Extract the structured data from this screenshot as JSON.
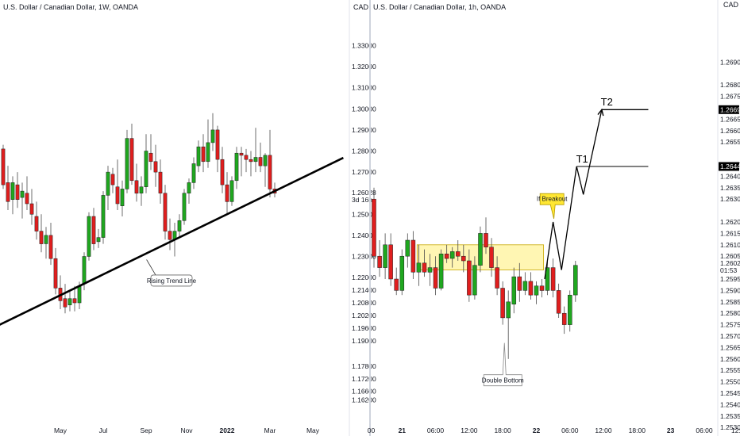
{
  "colors": {
    "up": "#1fa71f",
    "down": "#e01e1e",
    "wick": "#4a4a4a",
    "zone_fill": "#fff4a6",
    "zone_stroke": "#c8a800",
    "callout": "#ffe733",
    "divider": "#cfd3dc",
    "line": "#000000"
  },
  "chart_data": [
    {
      "type": "candlestick",
      "title": "U.S. Dollar / Canadian Dollar, 1W, OANDA",
      "currency_label": "CAD",
      "price_axis": {
        "range": [
          1.158,
          1.346
        ],
        "ticks": [
          "1.33000",
          "1.32000",
          "1.31000",
          "1.30000",
          "1.29000",
          "1.28000",
          "1.27000",
          "1.25000",
          "1.24000",
          "1.23000",
          "1.22000",
          "1.21400",
          "1.20800",
          "1.20200",
          "1.19600",
          "1.19000",
          "1.17800",
          "1.17200",
          "1.16600",
          "1.16200"
        ],
        "tick_values": [
          1.33,
          1.32,
          1.31,
          1.3,
          1.29,
          1.28,
          1.27,
          1.25,
          1.24,
          1.23,
          1.22,
          1.214,
          1.208,
          1.202,
          1.196,
          1.19,
          1.178,
          1.172,
          1.166,
          1.162
        ]
      },
      "last_price": {
        "value": "1.26028",
        "y": 1.2603,
        "countdown": "3d 16h"
      },
      "time_labels": [
        {
          "label": "lar",
          "i": -1.7,
          "bold": false
        },
        {
          "label": "May",
          "i": 12,
          "bold": false
        },
        {
          "label": "Jul",
          "i": 21,
          "bold": false
        },
        {
          "label": "Sep",
          "i": 30,
          "bold": false
        },
        {
          "label": "Nov",
          "i": 38.5,
          "bold": false
        },
        {
          "label": "2022",
          "i": 47,
          "bold": true
        },
        {
          "label": "Mar",
          "i": 56,
          "bold": false
        },
        {
          "label": "May",
          "i": 65,
          "bold": false
        }
      ],
      "candles": [
        [
          1.281,
          1.283,
          1.262,
          1.264
        ],
        [
          1.265,
          1.273,
          1.252,
          1.256
        ],
        [
          1.257,
          1.268,
          1.25,
          1.265
        ],
        [
          1.264,
          1.27,
          1.253,
          1.257
        ],
        [
          1.258,
          1.265,
          1.248,
          1.261
        ],
        [
          1.26,
          1.268,
          1.252,
          1.255
        ],
        [
          1.255,
          1.262,
          1.245,
          1.25
        ],
        [
          1.249,
          1.256,
          1.238,
          1.242
        ],
        [
          1.242,
          1.25,
          1.232,
          1.236
        ],
        [
          1.236,
          1.244,
          1.229,
          1.24
        ],
        [
          1.24,
          1.246,
          1.226,
          1.229
        ],
        [
          1.229,
          1.234,
          1.212,
          1.215
        ],
        [
          1.215,
          1.221,
          1.205,
          1.209
        ],
        [
          1.21,
          1.217,
          1.203,
          1.206
        ],
        [
          1.207,
          1.214,
          1.204,
          1.21
        ],
        [
          1.21,
          1.216,
          1.204,
          1.208
        ],
        [
          1.208,
          1.218,
          1.205,
          1.216
        ],
        [
          1.217,
          1.232,
          1.214,
          1.23
        ],
        [
          1.23,
          1.251,
          1.228,
          1.249
        ],
        [
          1.249,
          1.253,
          1.233,
          1.236
        ],
        [
          1.237,
          1.243,
          1.234,
          1.239
        ],
        [
          1.239,
          1.261,
          1.236,
          1.259
        ],
        [
          1.259,
          1.273,
          1.252,
          1.27
        ],
        [
          1.269,
          1.272,
          1.26,
          1.264
        ],
        [
          1.263,
          1.276,
          1.252,
          1.255
        ],
        [
          1.254,
          1.266,
          1.249,
          1.262
        ],
        [
          1.262,
          1.29,
          1.26,
          1.286
        ],
        [
          1.286,
          1.293,
          1.264,
          1.266
        ],
        [
          1.266,
          1.274,
          1.256,
          1.26
        ],
        [
          1.26,
          1.268,
          1.254,
          1.263
        ],
        [
          1.263,
          1.288,
          1.26,
          1.28
        ],
        [
          1.279,
          1.288,
          1.271,
          1.275
        ],
        [
          1.275,
          1.283,
          1.263,
          1.27
        ],
        [
          1.27,
          1.276,
          1.255,
          1.26
        ],
        [
          1.26,
          1.264,
          1.238,
          1.242
        ],
        [
          1.242,
          1.248,
          1.233,
          1.238
        ],
        [
          1.238,
          1.246,
          1.23,
          1.242
        ],
        [
          1.242,
          1.25,
          1.239,
          1.247
        ],
        [
          1.247,
          1.262,
          1.245,
          1.26
        ],
        [
          1.26,
          1.267,
          1.255,
          1.265
        ],
        [
          1.265,
          1.277,
          1.262,
          1.274
        ],
        [
          1.273,
          1.285,
          1.27,
          1.282
        ],
        [
          1.282,
          1.288,
          1.27,
          1.275
        ],
        [
          1.275,
          1.295,
          1.272,
          1.284
        ],
        [
          1.284,
          1.298,
          1.28,
          1.29
        ],
        [
          1.29,
          1.292,
          1.27,
          1.276
        ],
        [
          1.276,
          1.282,
          1.26,
          1.264
        ],
        [
          1.264,
          1.27,
          1.25,
          1.256
        ],
        [
          1.256,
          1.268,
          1.254,
          1.266
        ],
        [
          1.266,
          1.282,
          1.262,
          1.279
        ],
        [
          1.279,
          1.282,
          1.268,
          1.278
        ],
        [
          1.278,
          1.281,
          1.27,
          1.276
        ],
        [
          1.276,
          1.28,
          1.268,
          1.275
        ],
        [
          1.275,
          1.291,
          1.27,
          1.277
        ],
        [
          1.277,
          1.284,
          1.27,
          1.273
        ],
        [
          1.273,
          1.279,
          1.263,
          1.278
        ],
        [
          1.278,
          1.29,
          1.258,
          1.262
        ],
        [
          1.262,
          1.265,
          1.258,
          1.26
        ]
      ],
      "trend_line": {
        "from": [
          -4.5,
          1.1935
        ],
        "to": [
          71.4,
          1.2768
        ]
      },
      "annotation": {
        "label": "Rising Trend Line",
        "leader_from": [
          30.1,
          1.2285
        ],
        "leader_to": [
          32,
          1.2212
        ]
      }
    },
    {
      "type": "candlestick",
      "title": "U.S. Dollar / Canadian Dollar, 1h, OANDA",
      "currency_label": "CAD",
      "price_axis": {
        "range": [
          1.2528,
          1.2712
        ],
        "ticks": [
          "1.26900",
          "1.26800",
          "1.26750",
          "1.26650",
          "1.26600",
          "1.26550",
          "1.26450",
          "1.26400",
          "1.26350",
          "1.26300",
          "1.26200",
          "1.26150",
          "1.26100",
          "1.26050",
          "1.25950",
          "1.25900",
          "1.25850",
          "1.25800",
          "1.25750",
          "1.25700",
          "1.25650",
          "1.25600",
          "1.25550",
          "1.25500",
          "1.25450",
          "1.25400",
          "1.25350",
          "1.25300"
        ],
        "tick_values": [
          1.269,
          1.268,
          1.2675,
          1.2665,
          1.266,
          1.2655,
          1.2645,
          1.264,
          1.2635,
          1.263,
          1.262,
          1.2615,
          1.261,
          1.2605,
          1.2595,
          1.259,
          1.2585,
          1.258,
          1.2575,
          1.257,
          1.2565,
          1.256,
          1.2555,
          1.255,
          1.2545,
          1.254,
          1.2535,
          1.253
        ]
      },
      "last_price": {
        "value": "1.26025",
        "y": 1.2602,
        "countdown": "01:53"
      },
      "price_flags": [
        {
          "value": "1.26692",
          "y": 1.26692
        },
        {
          "value": "1.26443",
          "y": 1.26443
        }
      ],
      "time_labels": [
        {
          "label": "00",
          "i": -0.5,
          "bold": false
        },
        {
          "label": "21",
          "i": 5,
          "bold": true
        },
        {
          "label": "06:00",
          "i": 11,
          "bold": false
        },
        {
          "label": "12:00",
          "i": 17,
          "bold": false
        },
        {
          "label": "18:00",
          "i": 23,
          "bold": false
        },
        {
          "label": "22",
          "i": 29,
          "bold": true
        },
        {
          "label": "06:00",
          "i": 35,
          "bold": false
        },
        {
          "label": "12:00",
          "i": 41,
          "bold": false
        },
        {
          "label": "18:00",
          "i": 47,
          "bold": false
        },
        {
          "label": "23",
          "i": 53,
          "bold": true
        },
        {
          "label": "06:00",
          "i": 59,
          "bold": false
        },
        {
          "label": "12:0",
          "i": 65,
          "bold": false
        }
      ],
      "candles": [
        [
          1.263,
          1.2635,
          1.26,
          1.2605
        ],
        [
          1.2605,
          1.2612,
          1.2596,
          1.26
        ],
        [
          1.26,
          1.2615,
          1.2595,
          1.261
        ],
        [
          1.261,
          1.2615,
          1.2592,
          1.2595
        ],
        [
          1.2595,
          1.26,
          1.2588,
          1.259
        ],
        [
          1.259,
          1.2608,
          1.2588,
          1.2605
        ],
        [
          1.2605,
          1.2615,
          1.26,
          1.2612
        ],
        [
          1.2612,
          1.2616,
          1.2595,
          1.2598
        ],
        [
          1.2598,
          1.261,
          1.2592,
          1.2602
        ],
        [
          1.2602,
          1.2608,
          1.2596,
          1.2598
        ],
        [
          1.2598,
          1.2606,
          1.2592,
          1.26
        ],
        [
          1.26,
          1.2605,
          1.2588,
          1.2591
        ],
        [
          1.2591,
          1.2608,
          1.259,
          1.2606
        ],
        [
          1.2606,
          1.261,
          1.2602,
          1.2604
        ],
        [
          1.2604,
          1.2609,
          1.26,
          1.2607
        ],
        [
          1.2607,
          1.2612,
          1.2603,
          1.2605
        ],
        [
          1.2605,
          1.261,
          1.2598,
          1.2603
        ],
        [
          1.2603,
          1.2608,
          1.2585,
          1.2588
        ],
        [
          1.2588,
          1.2605,
          1.2586,
          1.2601
        ],
        [
          1.2601,
          1.2618,
          1.2598,
          1.2615
        ],
        [
          1.2615,
          1.2622,
          1.2606,
          1.2609
        ],
        [
          1.2609,
          1.2613,
          1.2596,
          1.26
        ],
        [
          1.26,
          1.2605,
          1.2588,
          1.2591
        ],
        [
          1.2591,
          1.2594,
          1.2575,
          1.2578
        ],
        [
          1.2578,
          1.259,
          1.256,
          1.2585
        ],
        [
          1.2584,
          1.26,
          1.258,
          1.2596
        ],
        [
          1.2596,
          1.2602,
          1.2585,
          1.259
        ],
        [
          1.259,
          1.2598,
          1.2588,
          1.2594
        ],
        [
          1.2594,
          1.2598,
          1.2586,
          1.2588
        ],
        [
          1.2588,
          1.2594,
          1.2584,
          1.2592
        ],
        [
          1.2592,
          1.2595,
          1.2587,
          1.259
        ],
        [
          1.259,
          1.2603,
          1.2588,
          1.26
        ],
        [
          1.26,
          1.2604,
          1.2587,
          1.259
        ],
        [
          1.259,
          1.2593,
          1.2578,
          1.258
        ],
        [
          1.258,
          1.2583,
          1.2571,
          1.2575
        ],
        [
          1.2575,
          1.259,
          1.2572,
          1.2588
        ],
        [
          1.2588,
          1.2603,
          1.2585,
          1.2601
        ]
      ],
      "zone": {
        "i_from": 7.7,
        "i_to": 30.3,
        "y_top": 1.261,
        "y_bottom": 1.2599
      },
      "projection": [
        [
          30.5,
          1.2595
        ],
        [
          32,
          1.262
        ],
        [
          33.5,
          1.2599
        ],
        [
          36.2,
          1.26443
        ],
        [
          37.4,
          1.2632
        ],
        [
          40.7,
          1.26692
        ],
        [
          49,
          1.26692
        ]
      ],
      "t1_line": {
        "from": [
          36.2,
          1.26443
        ],
        "to": [
          49,
          1.26443
        ]
      },
      "targets": [
        {
          "label": "T1",
          "at": [
            36.4,
            1.2646
          ]
        },
        {
          "label": "T2",
          "at": [
            40.8,
            1.2671
          ]
        }
      ],
      "callout": {
        "label": "If Breakout",
        "center": [
          31.8,
          1.263
        ]
      },
      "annotation": {
        "label": "Double Bottom",
        "leader_from": [
          23.3,
          1.2567
        ]
      }
    }
  ]
}
